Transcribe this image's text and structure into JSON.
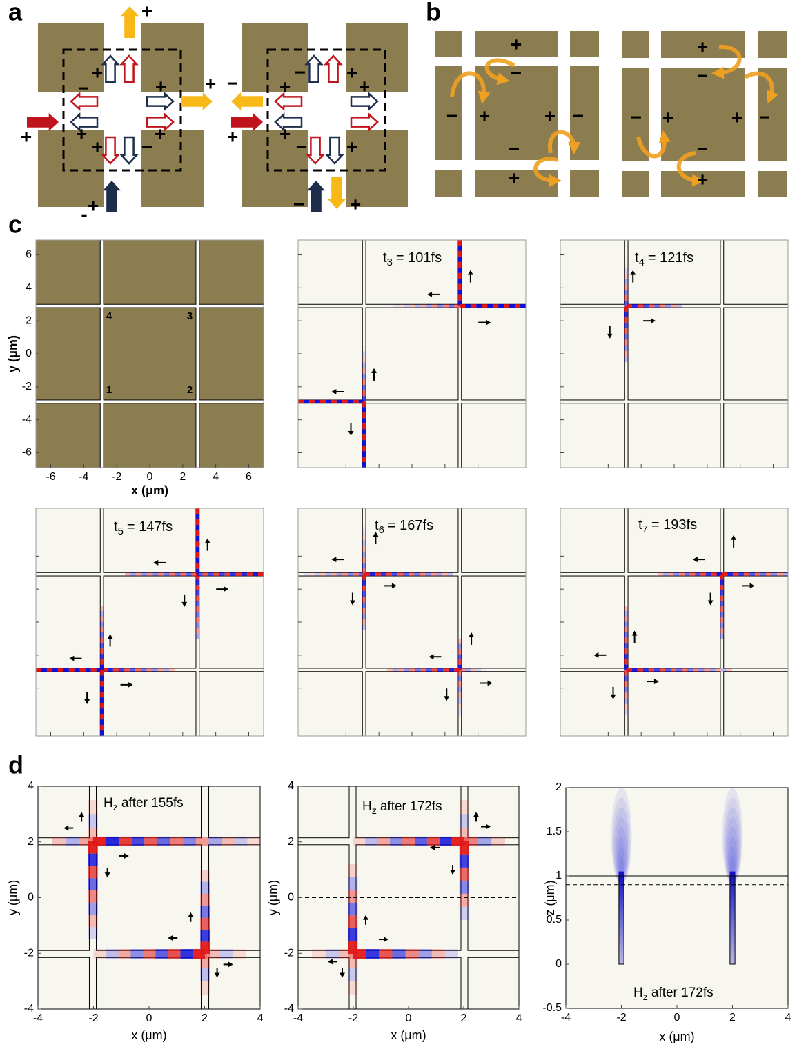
{
  "panel_labels": {
    "a": "a",
    "b": "b",
    "c": "c",
    "d": "d"
  },
  "panel_a": {
    "signs": [
      "+",
      "+",
      "−",
      "+",
      "+",
      "+",
      "−",
      "+",
      "+",
      "−",
      "+",
      "+",
      "-",
      "−",
      "+",
      "+",
      "+",
      "+",
      "−",
      "+",
      "+",
      "−",
      "+"
    ]
  },
  "panel_b": {
    "signs": [
      "+",
      "−",
      "−",
      "+",
      "+",
      "−",
      "−",
      "+",
      "+",
      "−",
      "−",
      "+",
      "+",
      "−",
      "−",
      "+"
    ]
  },
  "panel_c": {
    "xlim": [
      -6.9,
      6.9
    ],
    "ylim": [
      -6.9,
      6.9
    ],
    "xticks": [
      -6,
      -4,
      -2,
      0,
      2,
      4,
      6
    ],
    "yticks": [
      -6,
      -4,
      -2,
      0,
      2,
      4,
      6
    ],
    "x_label": "x (μm)",
    "y_label": "y (μm)",
    "corner_labels": [
      "1",
      "2",
      "3",
      "4"
    ],
    "time_labels": [
      {
        "t": "t",
        "sub": "3",
        "rest": "= 101fs"
      },
      {
        "t": "t",
        "sub": "4",
        "rest": "= 121fs"
      },
      {
        "t": "t",
        "sub": "5",
        "rest": "= 147fs"
      },
      {
        "t": "t",
        "sub": "6",
        "rest": "= 167fs"
      },
      {
        "t": "t",
        "sub": "7",
        "rest": "= 193fs"
      }
    ]
  },
  "panel_d": {
    "xlim": [
      -4,
      4
    ],
    "ylim": [
      -4,
      4
    ],
    "xticks": [
      -4,
      -2,
      0,
      2,
      4
    ],
    "yticks": [
      -4,
      -2,
      0,
      2,
      4
    ],
    "zlim": [
      -0.5,
      2
    ],
    "zticks": [
      -0.5,
      0,
      0.5,
      1,
      1.5,
      2
    ],
    "x_label": "x (μm)",
    "y_label": "y (μm)",
    "z_label": "z (μm)",
    "field_labels": [
      {
        "H": "H",
        "sub": "z",
        "rest": "after 155fs"
      },
      {
        "H": "H",
        "sub": "z",
        "rest": "after 172fs"
      },
      {
        "H": "H",
        "sub": "z",
        "rest": "after 172fs"
      }
    ]
  }
}
